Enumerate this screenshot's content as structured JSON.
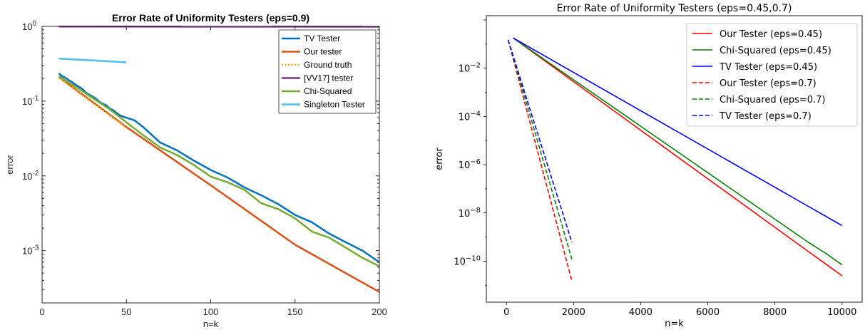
{
  "chart_data": [
    {
      "type": "line",
      "title": "Error Rate of Uniformity Testers (eps=0.9)",
      "xlabel": "n=k",
      "ylabel": "error",
      "xlim": [
        0,
        200
      ],
      "ylim": [
        0.0002,
        1
      ],
      "yscale": "log",
      "xticks": [
        "0",
        "50",
        "100",
        "150",
        "200"
      ],
      "yticks": [
        {
          "mantissa": "10",
          "exp": "0"
        },
        {
          "mantissa": "10",
          "exp": "-1"
        },
        {
          "mantissa": "10",
          "exp": "-2"
        },
        {
          "mantissa": "10",
          "exp": "-3"
        }
      ],
      "grid": false,
      "legend_position": "top-right",
      "series": [
        {
          "name": "TV Tester",
          "color": "#0072BD",
          "dash": "solid",
          "x": [
            10,
            12,
            14,
            16,
            18,
            20,
            22,
            24,
            26,
            28,
            30,
            32,
            34,
            36,
            38,
            40,
            42,
            44,
            46,
            48,
            50,
            55,
            60,
            70,
            80,
            90,
            100,
            110,
            120,
            130,
            140,
            150,
            160,
            170,
            180,
            190,
            200
          ],
          "y": [
            0.235,
            0.215,
            0.205,
            0.19,
            0.178,
            0.165,
            0.155,
            0.145,
            0.13,
            0.122,
            0.115,
            0.108,
            0.098,
            0.092,
            0.088,
            0.08,
            0.076,
            0.07,
            0.065,
            0.062,
            0.06,
            0.055,
            0.045,
            0.028,
            0.022,
            0.016,
            0.012,
            0.0095,
            0.007,
            0.0055,
            0.0042,
            0.003,
            0.0024,
            0.0017,
            0.0013,
            0.001,
            0.0007
          ]
        },
        {
          "name": "Our tester",
          "color": "#D95319",
          "dash": "solid",
          "x": [
            10,
            50,
            100,
            150,
            200
          ],
          "y": [
            0.21,
            0.045,
            0.0075,
            0.0012,
            0.00028
          ]
        },
        {
          "name": "Ground truth",
          "color": "#EDB120",
          "dash": "dotted",
          "x": [
            10,
            20,
            30,
            40,
            50
          ],
          "y": [
            0.205,
            0.14,
            0.095,
            0.065,
            0.044
          ]
        },
        {
          "name": "[VV17] tester",
          "color": "#7E2F8E",
          "dash": "solid",
          "x": [
            10,
            200
          ],
          "y": [
            0.995,
            0.99
          ]
        },
        {
          "name": "Chi-Squared",
          "color": "#77AC30",
          "dash": "solid",
          "x": [
            10,
            20,
            30,
            40,
            50,
            60,
            70,
            80,
            90,
            100,
            110,
            120,
            130,
            140,
            150,
            160,
            170,
            180,
            190,
            200
          ],
          "y": [
            0.215,
            0.155,
            0.11,
            0.078,
            0.052,
            0.035,
            0.024,
            0.019,
            0.014,
            0.0098,
            0.0082,
            0.0065,
            0.0043,
            0.0036,
            0.0027,
            0.0018,
            0.0015,
            0.0011,
            0.0008,
            0.00062
          ]
        },
        {
          "name": "Singleton Tester",
          "color": "#4DBEEE",
          "dash": "solid",
          "x": [
            10,
            20,
            30,
            40,
            50
          ],
          "y": [
            0.37,
            0.36,
            0.35,
            0.34,
            0.33
          ]
        }
      ]
    },
    {
      "type": "line",
      "title": "Error Rate of Uniformity Testers (eps=0.45,0.7)",
      "xlabel": "n=k",
      "ylabel": "error",
      "xlim": [
        -600,
        10600
      ],
      "ylim": [
        2e-12,
        1.5
      ],
      "yscale": "log",
      "xticks": [
        "0",
        "2000",
        "4000",
        "6000",
        "8000",
        "10000"
      ],
      "yticks": [
        {
          "mantissa": "10",
          "exp": "−2"
        },
        {
          "mantissa": "10",
          "exp": "−4"
        },
        {
          "mantissa": "10",
          "exp": "−6"
        },
        {
          "mantissa": "10",
          "exp": "−8"
        },
        {
          "mantissa": "10",
          "exp": "−10"
        }
      ],
      "grid": false,
      "legend_position": "top-right",
      "series": [
        {
          "name": "Our Tester (eps=0.45)",
          "color": "#ff0000",
          "dash": "solid",
          "x": [
            200,
            9000,
            9500,
            10000
          ],
          "y": [
            0.18,
            2.5e-10,
            8e-11,
            2.5e-11
          ]
        },
        {
          "name": "Chi-Squared (eps=0.45)",
          "color": "#008000",
          "dash": "solid",
          "x": [
            200,
            9000,
            9500,
            10000
          ],
          "y": [
            0.18,
            6e-10,
            2.2e-10,
            7e-11
          ]
        },
        {
          "name": "TV Tester (eps=0.45)",
          "color": "#0000ff",
          "dash": "solid",
          "x": [
            200,
            10000
          ],
          "y": [
            0.18,
            3e-09
          ]
        },
        {
          "name": "Our Tester (eps=0.7)",
          "color": "#ff0000",
          "dash": "dashed",
          "x": [
            50,
            1950
          ],
          "y": [
            0.15,
            1.5e-11
          ]
        },
        {
          "name": "Chi-Squared (eps=0.7)",
          "color": "#008000",
          "dash": "dashed",
          "x": [
            50,
            1950
          ],
          "y": [
            0.15,
            1.2e-10
          ]
        },
        {
          "name": "TV Tester (eps=0.7)",
          "color": "#0000ff",
          "dash": "dashed",
          "x": [
            50,
            1950
          ],
          "y": [
            0.15,
            6e-10
          ]
        }
      ]
    }
  ]
}
